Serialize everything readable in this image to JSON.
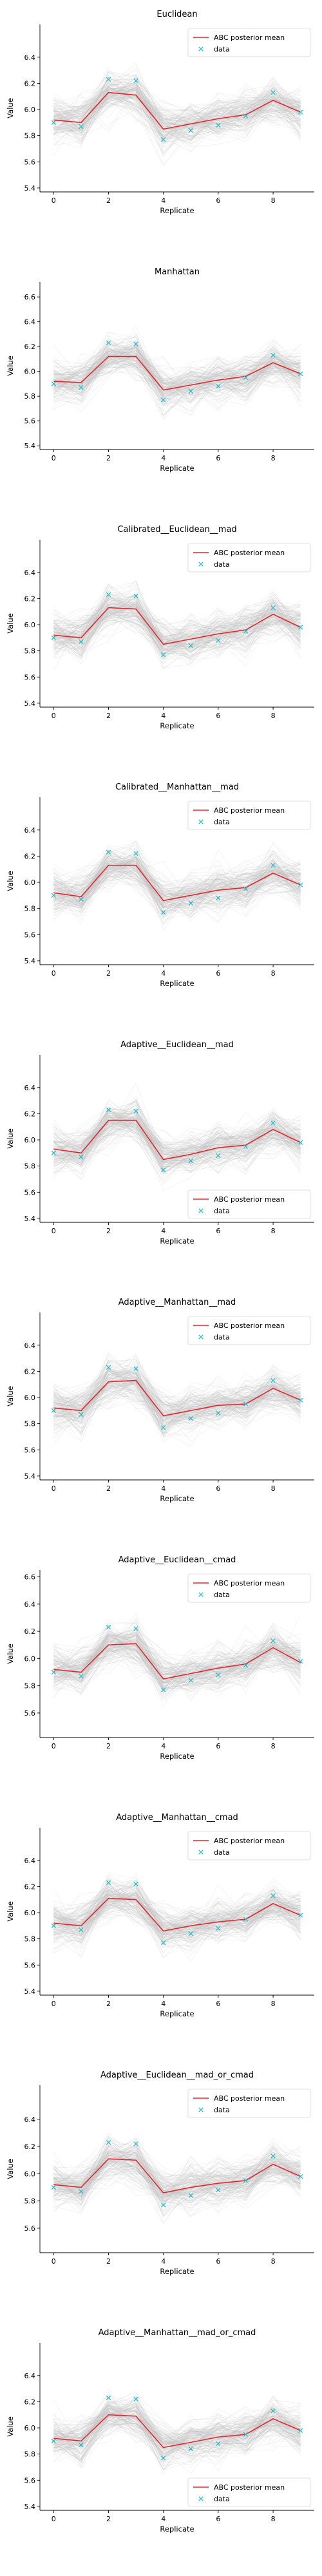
{
  "figure": {
    "ylabel": "Value",
    "xlabel": "Replicate",
    "legend_labels": [
      "ABC posterior mean",
      "data"
    ]
  },
  "chart_data": [
    {
      "type": "line",
      "title": "Euclidean",
      "xlabel": "Replicate",
      "ylabel": "Value",
      "xlim": [
        -0.5,
        9.5
      ],
      "ylim": [
        5.37,
        6.65
      ],
      "yticks": [
        5.4,
        5.6,
        5.8,
        6.0,
        6.2,
        6.4
      ],
      "xticks": [
        0,
        2,
        4,
        6,
        8
      ],
      "legend": "top-right",
      "series": [
        {
          "name": "ABC posterior mean",
          "x": [
            0,
            1,
            2,
            3,
            4,
            5,
            6,
            7,
            8,
            9
          ],
          "values": [
            5.92,
            5.9,
            6.13,
            6.11,
            5.85,
            5.89,
            5.93,
            5.96,
            6.07,
            5.98
          ]
        },
        {
          "name": "data",
          "x": [
            0,
            1,
            2,
            3,
            4,
            5,
            6,
            7,
            8,
            9
          ],
          "values": [
            5.9,
            5.87,
            6.23,
            6.22,
            5.77,
            5.84,
            5.88,
            5.95,
            6.13,
            5.98
          ]
        }
      ],
      "posterior_samples_band": {
        "lower": [
          5.6,
          5.58,
          5.83,
          5.8,
          5.52,
          5.58,
          5.62,
          5.65,
          5.78,
          5.67
        ],
        "upper": [
          6.25,
          6.22,
          6.46,
          6.43,
          6.18,
          6.22,
          6.25,
          6.28,
          6.4,
          6.3
        ]
      }
    },
    {
      "type": "line",
      "title": "Manhattan",
      "xlabel": "Replicate",
      "ylabel": "Value",
      "xlim": [
        -0.5,
        9.5
      ],
      "ylim": [
        5.37,
        6.72
      ],
      "yticks": [
        5.4,
        5.6,
        5.8,
        6.0,
        6.2,
        6.4,
        6.6
      ],
      "xticks": [
        0,
        2,
        4,
        6,
        8
      ],
      "legend": "none",
      "series": [
        {
          "name": "ABC posterior mean",
          "x": [
            0,
            1,
            2,
            3,
            4,
            5,
            6,
            7,
            8,
            9
          ],
          "values": [
            5.92,
            5.91,
            6.12,
            6.12,
            5.85,
            5.89,
            5.93,
            5.96,
            6.07,
            5.98
          ]
        },
        {
          "name": "data",
          "x": [
            0,
            1,
            2,
            3,
            4,
            5,
            6,
            7,
            8,
            9
          ],
          "values": [
            5.9,
            5.87,
            6.23,
            6.22,
            5.77,
            5.84,
            5.88,
            5.95,
            6.13,
            5.98
          ]
        }
      ],
      "posterior_samples_band": {
        "lower": [
          5.6,
          5.58,
          5.82,
          5.8,
          5.52,
          5.56,
          5.6,
          5.64,
          5.76,
          5.66
        ],
        "upper": [
          6.28,
          6.26,
          6.5,
          6.48,
          6.22,
          6.26,
          6.3,
          6.33,
          6.46,
          6.35
        ]
      }
    },
    {
      "type": "line",
      "title": "Calibrated__Euclidean__mad",
      "xlabel": "Replicate",
      "ylabel": "Value",
      "xlim": [
        -0.5,
        9.5
      ],
      "ylim": [
        5.37,
        6.65
      ],
      "yticks": [
        5.4,
        5.6,
        5.8,
        6.0,
        6.2,
        6.4
      ],
      "xticks": [
        0,
        2,
        4,
        6,
        8
      ],
      "legend": "top-right",
      "series": [
        {
          "name": "ABC posterior mean",
          "x": [
            0,
            1,
            2,
            3,
            4,
            5,
            6,
            7,
            8,
            9
          ],
          "values": [
            5.92,
            5.9,
            6.13,
            6.12,
            5.85,
            5.89,
            5.93,
            5.96,
            6.08,
            5.98
          ]
        },
        {
          "name": "data",
          "x": [
            0,
            1,
            2,
            3,
            4,
            5,
            6,
            7,
            8,
            9
          ],
          "values": [
            5.9,
            5.87,
            6.23,
            6.22,
            5.77,
            5.84,
            5.88,
            5.95,
            6.13,
            5.98
          ]
        }
      ],
      "posterior_samples_band": {
        "lower": [
          5.6,
          5.58,
          5.83,
          5.8,
          5.52,
          5.58,
          5.62,
          5.65,
          5.78,
          5.67
        ],
        "upper": [
          6.25,
          6.22,
          6.46,
          6.43,
          6.18,
          6.22,
          6.25,
          6.28,
          6.4,
          6.3
        ]
      }
    },
    {
      "type": "line",
      "title": "Calibrated__Manhattan__mad",
      "xlabel": "Replicate",
      "ylabel": "Value",
      "xlim": [
        -0.5,
        9.5
      ],
      "ylim": [
        5.37,
        6.65
      ],
      "yticks": [
        5.4,
        5.6,
        5.8,
        6.0,
        6.2,
        6.4
      ],
      "xticks": [
        0,
        2,
        4,
        6,
        8
      ],
      "legend": "top-right",
      "series": [
        {
          "name": "ABC posterior mean",
          "x": [
            0,
            1,
            2,
            3,
            4,
            5,
            6,
            7,
            8,
            9
          ],
          "values": [
            5.92,
            5.89,
            6.13,
            6.13,
            5.86,
            5.9,
            5.94,
            5.96,
            6.07,
            5.98
          ]
        },
        {
          "name": "data",
          "x": [
            0,
            1,
            2,
            3,
            4,
            5,
            6,
            7,
            8,
            9
          ],
          "values": [
            5.9,
            5.87,
            6.23,
            6.22,
            5.77,
            5.84,
            5.88,
            5.95,
            6.13,
            5.98
          ]
        }
      ],
      "posterior_samples_band": {
        "lower": [
          5.6,
          5.58,
          5.83,
          5.8,
          5.52,
          5.58,
          5.62,
          5.65,
          5.78,
          5.67
        ],
        "upper": [
          6.25,
          6.22,
          6.46,
          6.43,
          6.18,
          6.22,
          6.25,
          6.28,
          6.4,
          6.3
        ]
      }
    },
    {
      "type": "line",
      "title": "Adaptive__Euclidean__mad",
      "xlabel": "Replicate",
      "ylabel": "Value",
      "xlim": [
        -0.5,
        9.5
      ],
      "ylim": [
        5.37,
        6.65
      ],
      "yticks": [
        5.4,
        5.6,
        5.8,
        6.0,
        6.2,
        6.4
      ],
      "xticks": [
        0,
        2,
        4,
        6,
        8
      ],
      "legend": "bottom-right",
      "series": [
        {
          "name": "ABC posterior mean",
          "x": [
            0,
            1,
            2,
            3,
            4,
            5,
            6,
            7,
            8,
            9
          ],
          "values": [
            5.93,
            5.9,
            6.15,
            6.15,
            5.85,
            5.89,
            5.94,
            5.96,
            6.08,
            5.98
          ]
        },
        {
          "name": "data",
          "x": [
            0,
            1,
            2,
            3,
            4,
            5,
            6,
            7,
            8,
            9
          ],
          "values": [
            5.9,
            5.87,
            6.23,
            6.22,
            5.77,
            5.84,
            5.88,
            5.95,
            6.13,
            5.98
          ]
        }
      ],
      "posterior_samples_band": {
        "lower": [
          5.6,
          5.58,
          5.83,
          5.8,
          5.52,
          5.58,
          5.62,
          5.65,
          5.78,
          5.67
        ],
        "upper": [
          6.26,
          6.23,
          6.48,
          6.46,
          6.18,
          6.22,
          6.26,
          6.29,
          6.42,
          6.31
        ]
      }
    },
    {
      "type": "line",
      "title": "Adaptive__Manhattan__mad",
      "xlabel": "Replicate",
      "ylabel": "Value",
      "xlim": [
        -0.5,
        9.5
      ],
      "ylim": [
        5.37,
        6.65
      ],
      "yticks": [
        5.4,
        5.6,
        5.8,
        6.0,
        6.2,
        6.4
      ],
      "xticks": [
        0,
        2,
        4,
        6,
        8
      ],
      "legend": "top-right",
      "series": [
        {
          "name": "ABC posterior mean",
          "x": [
            0,
            1,
            2,
            3,
            4,
            5,
            6,
            7,
            8,
            9
          ],
          "values": [
            5.92,
            5.9,
            6.12,
            6.13,
            5.86,
            5.9,
            5.94,
            5.95,
            6.07,
            5.98
          ]
        },
        {
          "name": "data",
          "x": [
            0,
            1,
            2,
            3,
            4,
            5,
            6,
            7,
            8,
            9
          ],
          "values": [
            5.9,
            5.87,
            6.23,
            6.22,
            5.77,
            5.84,
            5.88,
            5.95,
            6.13,
            5.98
          ]
        }
      ],
      "posterior_samples_band": {
        "lower": [
          5.6,
          5.58,
          5.83,
          5.8,
          5.52,
          5.58,
          5.62,
          5.65,
          5.78,
          5.67
        ],
        "upper": [
          6.25,
          6.22,
          6.46,
          6.43,
          6.18,
          6.22,
          6.25,
          6.28,
          6.4,
          6.3
        ]
      }
    },
    {
      "type": "line",
      "title": "Adaptive__Euclidean__cmad",
      "xlabel": "Replicate",
      "ylabel": "Value",
      "xlim": [
        -0.5,
        9.5
      ],
      "ylim": [
        5.42,
        6.65
      ],
      "yticks": [
        5.6,
        5.8,
        6.0,
        6.2,
        6.4,
        6.6
      ],
      "xticks": [
        0,
        2,
        4,
        6,
        8
      ],
      "legend": "top-right",
      "series": [
        {
          "name": "ABC posterior mean",
          "x": [
            0,
            1,
            2,
            3,
            4,
            5,
            6,
            7,
            8,
            9
          ],
          "values": [
            5.92,
            5.9,
            6.1,
            6.11,
            5.85,
            5.89,
            5.93,
            5.96,
            6.08,
            5.97
          ]
        },
        {
          "name": "data",
          "x": [
            0,
            1,
            2,
            3,
            4,
            5,
            6,
            7,
            8,
            9
          ],
          "values": [
            5.9,
            5.87,
            6.23,
            6.22,
            5.77,
            5.84,
            5.88,
            5.95,
            6.13,
            5.98
          ]
        }
      ],
      "posterior_samples_band": {
        "lower": [
          5.62,
          5.6,
          5.82,
          5.8,
          5.55,
          5.6,
          5.63,
          5.66,
          5.78,
          5.68
        ],
        "upper": [
          6.26,
          6.24,
          6.46,
          6.44,
          6.2,
          6.24,
          6.27,
          6.3,
          6.42,
          6.32
        ]
      }
    },
    {
      "type": "line",
      "title": "Adaptive__Manhattan__cmad",
      "xlabel": "Replicate",
      "ylabel": "Value",
      "xlim": [
        -0.5,
        9.5
      ],
      "ylim": [
        5.37,
        6.65
      ],
      "yticks": [
        5.4,
        5.6,
        5.8,
        6.0,
        6.2,
        6.4
      ],
      "xticks": [
        0,
        2,
        4,
        6,
        8
      ],
      "legend": "top-right",
      "series": [
        {
          "name": "ABC posterior mean",
          "x": [
            0,
            1,
            2,
            3,
            4,
            5,
            6,
            7,
            8,
            9
          ],
          "values": [
            5.92,
            5.9,
            6.11,
            6.1,
            5.86,
            5.9,
            5.93,
            5.95,
            6.07,
            5.98
          ]
        },
        {
          "name": "data",
          "x": [
            0,
            1,
            2,
            3,
            4,
            5,
            6,
            7,
            8,
            9
          ],
          "values": [
            5.9,
            5.87,
            6.23,
            6.22,
            5.77,
            5.84,
            5.88,
            5.95,
            6.13,
            5.98
          ]
        }
      ],
      "posterior_samples_band": {
        "lower": [
          5.6,
          5.58,
          5.83,
          5.8,
          5.52,
          5.58,
          5.62,
          5.65,
          5.78,
          5.67
        ],
        "upper": [
          6.25,
          6.22,
          6.46,
          6.43,
          6.18,
          6.22,
          6.25,
          6.28,
          6.4,
          6.3
        ]
      }
    },
    {
      "type": "line",
      "title": "Adaptive__Euclidean__mad_or_cmad",
      "xlabel": "Replicate",
      "ylabel": "Value",
      "xlim": [
        -0.5,
        9.5
      ],
      "ylim": [
        5.42,
        6.65
      ],
      "yticks": [
        5.6,
        5.8,
        6.0,
        6.2,
        6.4
      ],
      "xticks": [
        0,
        2,
        4,
        6,
        8
      ],
      "legend": "top-right",
      "series": [
        {
          "name": "ABC posterior mean",
          "x": [
            0,
            1,
            2,
            3,
            4,
            5,
            6,
            7,
            8,
            9
          ],
          "values": [
            5.92,
            5.9,
            6.11,
            6.1,
            5.86,
            5.9,
            5.93,
            5.95,
            6.07,
            5.98
          ]
        },
        {
          "name": "data",
          "x": [
            0,
            1,
            2,
            3,
            4,
            5,
            6,
            7,
            8,
            9
          ],
          "values": [
            5.9,
            5.87,
            6.23,
            6.22,
            5.77,
            5.84,
            5.88,
            5.95,
            6.13,
            5.98
          ]
        }
      ],
      "posterior_samples_band": {
        "lower": [
          5.62,
          5.6,
          5.82,
          5.8,
          5.55,
          5.6,
          5.63,
          5.66,
          5.78,
          5.68
        ],
        "upper": [
          6.26,
          6.24,
          6.46,
          6.44,
          6.2,
          6.24,
          6.27,
          6.3,
          6.42,
          6.32
        ]
      }
    },
    {
      "type": "line",
      "title": "Adaptive__Manhattan__mad_or_cmad",
      "xlabel": "Replicate",
      "ylabel": "Value",
      "xlim": [
        -0.5,
        9.5
      ],
      "ylim": [
        5.37,
        6.65
      ],
      "yticks": [
        5.4,
        5.6,
        5.8,
        6.0,
        6.2,
        6.4
      ],
      "xticks": [
        0,
        2,
        4,
        6,
        8
      ],
      "legend": "bottom-right",
      "series": [
        {
          "name": "ABC posterior mean",
          "x": [
            0,
            1,
            2,
            3,
            4,
            5,
            6,
            7,
            8,
            9
          ],
          "values": [
            5.92,
            5.9,
            6.1,
            6.09,
            5.85,
            5.89,
            5.93,
            5.95,
            6.07,
            5.98
          ]
        },
        {
          "name": "data",
          "x": [
            0,
            1,
            2,
            3,
            4,
            5,
            6,
            7,
            8,
            9
          ],
          "values": [
            5.9,
            5.87,
            6.23,
            6.22,
            5.77,
            5.84,
            5.88,
            5.95,
            6.13,
            5.98
          ]
        }
      ],
      "posterior_samples_band": {
        "lower": [
          5.6,
          5.58,
          5.83,
          5.8,
          5.52,
          5.58,
          5.62,
          5.65,
          5.78,
          5.67
        ],
        "upper": [
          6.25,
          6.22,
          6.46,
          6.43,
          6.18,
          6.22,
          6.25,
          6.28,
          6.4,
          6.3
        ]
      }
    }
  ],
  "colors": {
    "mean_line": "#e8262a",
    "data_marker": "#22bfd0",
    "samples": "#bdbdbd",
    "axis": "#000000"
  }
}
